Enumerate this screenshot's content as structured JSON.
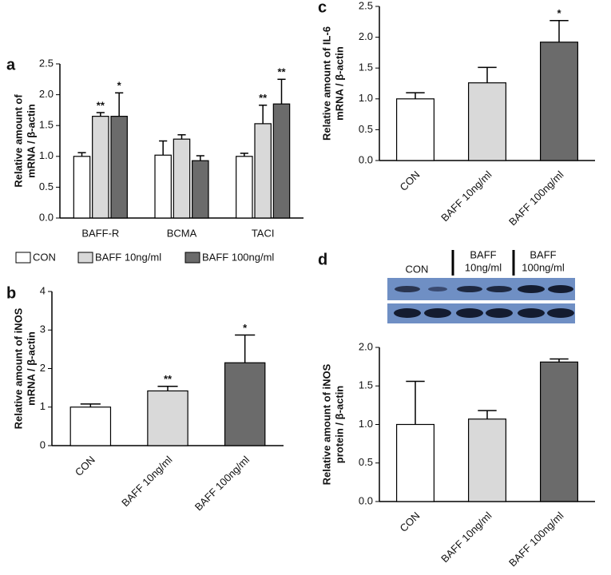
{
  "chart_data": [
    {
      "type": "bar",
      "panel": "a",
      "ylabel": [
        "Relative amount of",
        "mRNA / β-actin"
      ],
      "categories": [
        "BAFF-R",
        "BCMA",
        "TACI"
      ],
      "series": [
        {
          "name": "CON",
          "color": "#ffffff",
          "values": [
            1.0,
            1.02,
            1.0
          ],
          "errors": [
            0.06,
            0.23,
            0.05
          ],
          "stars": [
            null,
            null,
            null
          ]
        },
        {
          "name": "BAFF 10ng/ml",
          "color": "#d9d9d9",
          "values": [
            1.65,
            1.28,
            1.53
          ],
          "errors": [
            0.06,
            0.07,
            0.3
          ],
          "stars": [
            "**",
            null,
            "**"
          ]
        },
        {
          "name": "BAFF 100ng/ml",
          "color": "#6b6b6b",
          "values": [
            1.65,
            0.93,
            1.85
          ],
          "errors": [
            0.38,
            0.08,
            0.4
          ],
          "stars": [
            "*",
            null,
            "**"
          ]
        }
      ],
      "ylim": [
        0,
        2.5
      ],
      "yticks": [
        {
          "value": 0,
          "label": "0.0"
        },
        0.5,
        {
          "value": 1,
          "label": "1.0"
        },
        1.5,
        {
          "value": 2,
          "label": "2.0"
        },
        2.5
      ]
    },
    {
      "type": "bar",
      "panel": "b",
      "ylabel": [
        "Relative amount of iNOS",
        "mRNA / β-actin"
      ],
      "categories": [
        "CON",
        "BAFF 10ng/ml",
        "BAFF 100ng/ml"
      ],
      "colors": [
        "#ffffff",
        "#d9d9d9",
        "#6b6b6b"
      ],
      "values": [
        1.0,
        1.42,
        2.15
      ],
      "errors": [
        0.08,
        0.12,
        0.72
      ],
      "stars": [
        null,
        "**",
        "*"
      ],
      "ylim": [
        0,
        4
      ],
      "yticks": [
        0,
        1,
        2,
        3,
        4
      ]
    },
    {
      "type": "bar",
      "panel": "c",
      "ylabel": [
        "Relative amount of IL-6",
        "mRNA / β-actin"
      ],
      "categories": [
        "CON",
        "BAFF 10ng/ml",
        "BAFF 100ng/ml"
      ],
      "colors": [
        "#ffffff",
        "#d9d9d9",
        "#6b6b6b"
      ],
      "values": [
        1.0,
        1.26,
        1.92
      ],
      "errors": [
        0.1,
        0.25,
        0.35
      ],
      "stars": [
        null,
        null,
        "*"
      ],
      "ylim": [
        0,
        2.5
      ],
      "yticks": [
        {
          "value": 0,
          "label": "0.0"
        },
        0.5,
        {
          "value": 1,
          "label": "1.0"
        },
        1.5,
        {
          "value": 2,
          "label": "2.0"
        },
        2.5
      ]
    },
    {
      "type": "bar",
      "panel": "d",
      "ylabel": [
        "Relative amount of iNOS",
        "protein / β-actin"
      ],
      "blot_labels": [
        [
          "CON"
        ],
        [
          "BAFF",
          "10ng/ml"
        ],
        [
          "BAFF",
          "100ng/ml"
        ]
      ],
      "categories": [
        "CON",
        "BAFF 10ng/ml",
        "BAFF 100ng/ml"
      ],
      "colors": [
        "#ffffff",
        "#d9d9d9",
        "#6b6b6b"
      ],
      "values": [
        1.0,
        1.07,
        1.81
      ],
      "errors": [
        0.56,
        0.11,
        0.04
      ],
      "stars": [
        null,
        null,
        null
      ],
      "ylim": [
        0,
        2
      ],
      "yticks": [
        {
          "value": 0,
          "label": "0.0"
        },
        0.5,
        {
          "value": 1,
          "label": "1.0"
        },
        1.5,
        {
          "value": 2,
          "label": "2.0"
        }
      ]
    }
  ]
}
